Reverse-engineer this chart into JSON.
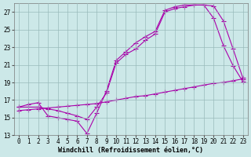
{
  "xlabel": "Windchill (Refroidissement éolien,°C)",
  "bg_color": "#cce8e8",
  "line_color": "#aa00aa",
  "xlim": [
    -0.5,
    23.5
  ],
  "ylim": [
    13,
    28
  ],
  "xticks": [
    0,
    1,
    2,
    3,
    4,
    5,
    6,
    7,
    8,
    9,
    10,
    11,
    12,
    13,
    14,
    15,
    16,
    17,
    18,
    19,
    20,
    21,
    22,
    23
  ],
  "yticks": [
    13,
    15,
    17,
    19,
    21,
    23,
    25,
    27
  ],
  "curve1_x": [
    0,
    1,
    2,
    3,
    4,
    5,
    6,
    7,
    8,
    9,
    10,
    11,
    12,
    13,
    14,
    15,
    16,
    17,
    18,
    19,
    20,
    21,
    22,
    23
  ],
  "curve1_y": [
    16.2,
    16.5,
    16.7,
    15.2,
    15.0,
    14.8,
    14.6,
    13.2,
    15.5,
    18.0,
    21.5,
    22.5,
    23.5,
    24.2,
    24.8,
    27.2,
    27.6,
    27.8,
    27.8,
    27.8,
    26.3,
    23.2,
    20.9,
    19.1
  ],
  "curve2_x": [
    0,
    2,
    3,
    4,
    5,
    6,
    7,
    8,
    9,
    10,
    11,
    12,
    13,
    14,
    15,
    16,
    17,
    18,
    19,
    20,
    21,
    22,
    23
  ],
  "curve2_y": [
    16.2,
    16.2,
    16.0,
    15.8,
    15.5,
    15.2,
    14.8,
    16.2,
    17.8,
    21.2,
    22.2,
    22.8,
    23.8,
    24.5,
    27.0,
    27.4,
    27.6,
    27.8,
    27.8,
    27.7,
    26.0,
    22.8,
    19.5
  ],
  "curve3_x": [
    0,
    1,
    2,
    3,
    4,
    5,
    6,
    7,
    8,
    9,
    10,
    11,
    12,
    13,
    14,
    15,
    16,
    17,
    18,
    19,
    20,
    21,
    22,
    23
  ],
  "curve3_y": [
    15.8,
    15.9,
    16.0,
    16.1,
    16.2,
    16.3,
    16.4,
    16.5,
    16.6,
    16.8,
    17.0,
    17.2,
    17.4,
    17.5,
    17.7,
    17.9,
    18.1,
    18.3,
    18.5,
    18.7,
    18.9,
    19.0,
    19.2,
    19.4
  ],
  "grid_color": "#99bbbb",
  "marker": "+",
  "markersize": 4,
  "linewidth": 0.8,
  "tick_fontsize": 5.5,
  "xlabel_fontsize": 6.0
}
